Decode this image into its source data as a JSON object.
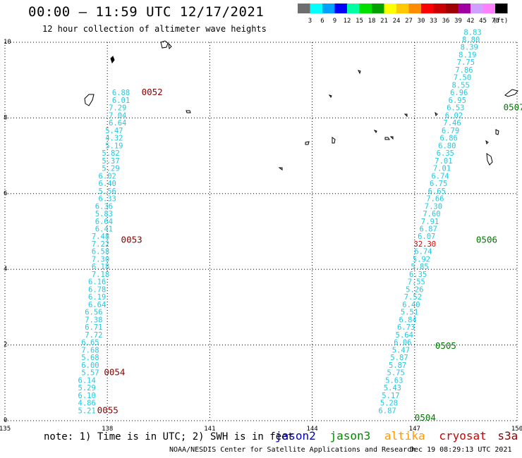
{
  "header": {
    "title": "00:00 – 11:59 UTC 12/17/2021",
    "subtitle": "12 hour collection of altimeter wave heights"
  },
  "colorbar": {
    "colors": [
      "#6e6e6e",
      "#00ffff",
      "#00a0ff",
      "#0000ff",
      "#00ffa0",
      "#00e000",
      "#00a000",
      "#ffff00",
      "#ffc800",
      "#ff8c00",
      "#ff0000",
      "#c80000",
      "#a00000",
      "#a000a0",
      "#d0a0ff",
      "#ff80ff",
      "#000000"
    ],
    "labels": [
      "3",
      "6",
      "9",
      "12",
      "15",
      "18",
      "21",
      "24",
      "27",
      "30",
      "33",
      "36",
      "39",
      "42",
      "45",
      "70",
      "(ft)"
    ]
  },
  "axes": {
    "x_ticks": [
      "135",
      "138",
      "141",
      "144",
      "147",
      "150"
    ],
    "y_ticks": [
      "0",
      "2",
      "4",
      "6",
      "8",
      "10"
    ],
    "xlim": [
      135,
      150
    ],
    "ylim": [
      0,
      10
    ]
  },
  "tracks": {
    "west": {
      "points": [
        {
          "lon": 137.4,
          "lat": 0.2,
          "v": "5.21"
        },
        {
          "lon": 137.4,
          "lat": 0.4,
          "v": "4.86"
        },
        {
          "lon": 137.4,
          "lat": 0.6,
          "v": "6.10"
        },
        {
          "lon": 137.4,
          "lat": 0.8,
          "v": "5.29"
        },
        {
          "lon": 137.4,
          "lat": 1.0,
          "v": "6.14"
        },
        {
          "lon": 137.5,
          "lat": 1.2,
          "v": "5.57"
        },
        {
          "lon": 137.5,
          "lat": 1.4,
          "v": "6.00"
        },
        {
          "lon": 137.5,
          "lat": 1.6,
          "v": "5.68"
        },
        {
          "lon": 137.5,
          "lat": 1.8,
          "v": "7.68"
        },
        {
          "lon": 137.5,
          "lat": 2.0,
          "v": "6.65"
        },
        {
          "lon": 137.6,
          "lat": 2.2,
          "v": "7.72"
        },
        {
          "lon": 137.6,
          "lat": 2.4,
          "v": "6.71"
        },
        {
          "lon": 137.6,
          "lat": 2.6,
          "v": "7.38"
        },
        {
          "lon": 137.6,
          "lat": 2.8,
          "v": "6.56"
        },
        {
          "lon": 137.7,
          "lat": 3.0,
          "v": "6.64"
        },
        {
          "lon": 137.7,
          "lat": 3.2,
          "v": "6.19"
        },
        {
          "lon": 137.7,
          "lat": 3.4,
          "v": "6.78"
        },
        {
          "lon": 137.7,
          "lat": 3.6,
          "v": "6.16"
        },
        {
          "lon": 137.8,
          "lat": 3.8,
          "v": "7.18"
        },
        {
          "lon": 137.8,
          "lat": 4.0,
          "v": "6.18"
        },
        {
          "lon": 137.8,
          "lat": 4.2,
          "v": "7.30"
        },
        {
          "lon": 137.8,
          "lat": 4.4,
          "v": "6.58"
        },
        {
          "lon": 137.8,
          "lat": 4.6,
          "v": "7.22"
        },
        {
          "lon": 137.8,
          "lat": 4.8,
          "v": "7.48"
        },
        {
          "lon": 137.9,
          "lat": 5.0,
          "v": "6.41"
        },
        {
          "lon": 137.9,
          "lat": 5.2,
          "v": "6.64"
        },
        {
          "lon": 137.9,
          "lat": 5.4,
          "v": "5.83"
        },
        {
          "lon": 137.9,
          "lat": 5.6,
          "v": "6.36"
        },
        {
          "lon": 138.0,
          "lat": 5.8,
          "v": "6.33"
        },
        {
          "lon": 138.0,
          "lat": 6.0,
          "v": "5.56"
        },
        {
          "lon": 138.0,
          "lat": 6.2,
          "v": "6.40"
        },
        {
          "lon": 138.0,
          "lat": 6.4,
          "v": "6.02"
        },
        {
          "lon": 138.1,
          "lat": 6.6,
          "v": "5.29"
        },
        {
          "lon": 138.1,
          "lat": 6.8,
          "v": "5.37"
        },
        {
          "lon": 138.1,
          "lat": 7.0,
          "v": "5.82"
        },
        {
          "lon": 138.2,
          "lat": 7.2,
          "v": "5.19"
        },
        {
          "lon": 138.2,
          "lat": 7.4,
          "v": "4.32"
        },
        {
          "lon": 138.2,
          "lat": 7.6,
          "v": "5.47"
        },
        {
          "lon": 138.3,
          "lat": 7.8,
          "v": "6.64"
        },
        {
          "lon": 138.3,
          "lat": 8.0,
          "v": "7.04"
        },
        {
          "lon": 138.3,
          "lat": 8.2,
          "v": "7.29"
        },
        {
          "lon": 138.4,
          "lat": 8.4,
          "v": "6.01"
        },
        {
          "lon": 138.4,
          "lat": 8.6,
          "v": "6.88"
        }
      ],
      "times": [
        {
          "label": "0055",
          "lon": 137.7,
          "lat": 0.2
        },
        {
          "label": "0054",
          "lon": 137.9,
          "lat": 1.2
        },
        {
          "label": "0053",
          "lon": 138.4,
          "lat": 4.7
        },
        {
          "label": "0052",
          "lon": 139.0,
          "lat": 8.6
        }
      ]
    },
    "east": {
      "points": [
        {
          "lon": 146.2,
          "lat": 0.2,
          "v": "6.87"
        },
        {
          "lon": 146.25,
          "lat": 0.4,
          "v": "5.28"
        },
        {
          "lon": 146.3,
          "lat": 0.6,
          "v": "5.17"
        },
        {
          "lon": 146.35,
          "lat": 0.8,
          "v": "5.43"
        },
        {
          "lon": 146.4,
          "lat": 1.0,
          "v": "5.63"
        },
        {
          "lon": 146.45,
          "lat": 1.2,
          "v": "5.75"
        },
        {
          "lon": 146.5,
          "lat": 1.4,
          "v": "5.87"
        },
        {
          "lon": 146.55,
          "lat": 1.6,
          "v": "5.87"
        },
        {
          "lon": 146.6,
          "lat": 1.8,
          "v": "5.47"
        },
        {
          "lon": 146.65,
          "lat": 2.0,
          "v": "6.06"
        },
        {
          "lon": 146.7,
          "lat": 2.2,
          "v": "5.64"
        },
        {
          "lon": 146.75,
          "lat": 2.4,
          "v": "6.73"
        },
        {
          "lon": 146.8,
          "lat": 2.6,
          "v": "6.84"
        },
        {
          "lon": 146.85,
          "lat": 2.8,
          "v": "5.51"
        },
        {
          "lon": 146.9,
          "lat": 3.0,
          "v": "6.40"
        },
        {
          "lon": 146.95,
          "lat": 3.2,
          "v": "7.52"
        },
        {
          "lon": 147.0,
          "lat": 3.4,
          "v": "5.26"
        },
        {
          "lon": 147.05,
          "lat": 3.6,
          "v": "7.55"
        },
        {
          "lon": 147.1,
          "lat": 3.8,
          "v": "6.35"
        },
        {
          "lon": 147.15,
          "lat": 4.0,
          "v": "5.85"
        },
        {
          "lon": 147.2,
          "lat": 4.2,
          "v": "5.92"
        },
        {
          "lon": 147.25,
          "lat": 4.4,
          "v": "6.74"
        },
        {
          "lon": 147.3,
          "lat": 4.6,
          "v": "32.30",
          "hot": true
        },
        {
          "lon": 147.35,
          "lat": 4.8,
          "v": "6.07"
        },
        {
          "lon": 147.4,
          "lat": 5.0,
          "v": "6.87"
        },
        {
          "lon": 147.45,
          "lat": 5.2,
          "v": "7.91"
        },
        {
          "lon": 147.5,
          "lat": 5.4,
          "v": "7.60"
        },
        {
          "lon": 147.55,
          "lat": 5.6,
          "v": "7.30"
        },
        {
          "lon": 147.6,
          "lat": 5.8,
          "v": "7.66"
        },
        {
          "lon": 147.65,
          "lat": 6.0,
          "v": "6.65"
        },
        {
          "lon": 147.7,
          "lat": 6.2,
          "v": "6.75"
        },
        {
          "lon": 147.75,
          "lat": 6.4,
          "v": "6.74"
        },
        {
          "lon": 147.8,
          "lat": 6.6,
          "v": "7.01"
        },
        {
          "lon": 147.85,
          "lat": 6.8,
          "v": "7.01"
        },
        {
          "lon": 147.9,
          "lat": 7.0,
          "v": "6.35"
        },
        {
          "lon": 147.95,
          "lat": 7.2,
          "v": "6.80"
        },
        {
          "lon": 148.0,
          "lat": 7.4,
          "v": "6.86"
        },
        {
          "lon": 148.05,
          "lat": 7.6,
          "v": "6.79"
        },
        {
          "lon": 148.1,
          "lat": 7.8,
          "v": "7.46"
        },
        {
          "lon": 148.15,
          "lat": 8.0,
          "v": "6.02"
        },
        {
          "lon": 148.2,
          "lat": 8.2,
          "v": "6.53"
        },
        {
          "lon": 148.25,
          "lat": 8.4,
          "v": "6.95"
        },
        {
          "lon": 148.3,
          "lat": 8.6,
          "v": "6.96"
        },
        {
          "lon": 148.35,
          "lat": 8.8,
          "v": "8.55"
        },
        {
          "lon": 148.4,
          "lat": 9.0,
          "v": "7.50"
        },
        {
          "lon": 148.45,
          "lat": 9.2,
          "v": "7.86"
        },
        {
          "lon": 148.5,
          "lat": 9.4,
          "v": "7.75"
        },
        {
          "lon": 148.55,
          "lat": 9.6,
          "v": "8.19"
        },
        {
          "lon": 148.6,
          "lat": 9.8,
          "v": "8.39"
        },
        {
          "lon": 148.65,
          "lat": 10.0,
          "v": "8.80"
        },
        {
          "lon": 148.7,
          "lat": 10.2,
          "v": "8.83"
        }
      ],
      "times": [
        {
          "label": "0504",
          "lon": 147.0,
          "lat": 0.0
        },
        {
          "label": "0505",
          "lon": 147.6,
          "lat": 1.9
        },
        {
          "label": "0506",
          "lon": 148.8,
          "lat": 4.7
        },
        {
          "label": "0507",
          "lon": 149.6,
          "lat": 8.2
        }
      ]
    }
  },
  "note": "note: 1) Time is in UTC; 2) SWH is in feet",
  "legend": [
    {
      "label": "jason2",
      "color": "#0000cc"
    },
    {
      "label": "jason3",
      "color": "#008800"
    },
    {
      "label": "altika",
      "color": "#ff9900"
    },
    {
      "label": "cryosat",
      "color": "#cc0000"
    },
    {
      "label": "s3a",
      "color": "#880000"
    }
  ],
  "footer": {
    "credit": "NOAA/NESDIS Center for Satellite Applications and Research",
    "timestamp": "Dec 19 08:29:13 UTC 2021"
  }
}
